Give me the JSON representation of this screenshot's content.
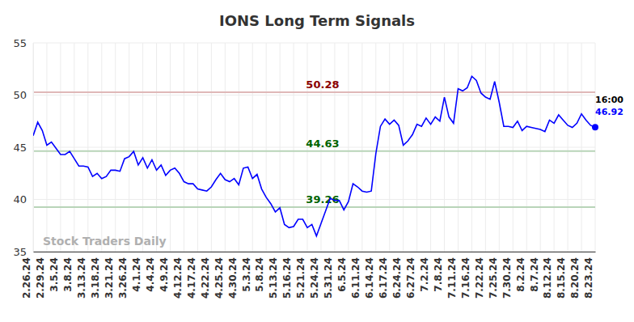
{
  "chart_data": {
    "type": "line",
    "title": "IONS Long Term Signals",
    "categories": [
      "2.26.24",
      null,
      null,
      "2.29.24",
      null,
      null,
      "3.5.24",
      null,
      null,
      "3.8.24",
      null,
      null,
      "3.13.24",
      null,
      null,
      "3.18.24",
      null,
      null,
      "3.21.24",
      null,
      null,
      "3.26.24",
      null,
      null,
      "4.1.24",
      null,
      null,
      "4.4.24",
      null,
      null,
      "4.9.24",
      null,
      null,
      "4.12.24",
      null,
      null,
      "4.17.24",
      null,
      null,
      "4.22.24",
      null,
      null,
      "4.25.24",
      null,
      null,
      "4.30.24",
      null,
      null,
      "5.3.24",
      null,
      null,
      "5.8.24",
      null,
      null,
      "5.13.24",
      null,
      null,
      "5.16.24",
      null,
      null,
      "5.21.24",
      null,
      null,
      "5.24.24",
      null,
      null,
      "5.31.24",
      null,
      null,
      "6.5.24",
      null,
      null,
      "6.11.24",
      null,
      null,
      "6.14.24",
      null,
      null,
      "6.17.24",
      null,
      null,
      "6.24.24",
      null,
      null,
      "6.27.24",
      null,
      null,
      "7.2.24",
      null,
      null,
      "7.8.24",
      null,
      null,
      "7.11.24",
      null,
      null,
      "7.16.24",
      null,
      null,
      "7.22.24",
      null,
      null,
      "7.25.24",
      null,
      null,
      "7.30.24",
      null,
      null,
      "8.2.24",
      null,
      null,
      "8.7.24",
      null,
      null,
      "8.12.24",
      null,
      null,
      "8.15.24",
      null,
      null,
      "8.20.24",
      null,
      null,
      "8.23.24"
    ],
    "values": [
      46.1,
      47.4,
      46.6,
      45.2,
      45.5,
      44.9,
      44.3,
      44.3,
      44.6,
      43.9,
      43.2,
      43.2,
      43.1,
      42.2,
      42.5,
      42.0,
      42.2,
      42.8,
      42.8,
      42.7,
      43.9,
      44.1,
      44.6,
      43.3,
      44.0,
      43.0,
      43.8,
      42.8,
      43.3,
      42.3,
      42.8,
      43.0,
      42.5,
      41.7,
      41.5,
      41.5,
      41.0,
      40.9,
      40.8,
      41.2,
      41.9,
      42.5,
      41.9,
      41.7,
      42.0,
      41.4,
      43.0,
      43.1,
      42.0,
      42.4,
      41.0,
      40.2,
      39.6,
      38.8,
      39.2,
      37.6,
      37.3,
      37.4,
      38.1,
      38.1,
      37.3,
      37.6,
      36.5,
      37.7,
      38.9,
      40.1,
      39.9,
      39.9,
      39.0,
      39.8,
      41.5,
      41.2,
      40.8,
      40.7,
      40.8,
      44.4,
      47.0,
      47.7,
      47.2,
      47.6,
      47.1,
      45.2,
      45.6,
      46.2,
      47.2,
      47.0,
      47.8,
      47.2,
      47.9,
      47.5,
      49.8,
      47.9,
      47.3,
      50.6,
      50.4,
      50.7,
      51.8,
      51.4,
      50.2,
      49.8,
      49.6,
      51.3,
      49.3,
      47.0,
      47.0,
      46.9,
      47.5,
      46.6,
      47.0,
      46.9,
      46.8,
      46.7,
      46.5,
      47.6,
      47.3,
      48.1,
      47.6,
      47.1,
      46.9,
      47.3,
      48.2,
      47.6,
      47.1,
      46.92
    ],
    "color": "#0000ff",
    "ylim": [
      35,
      55
    ],
    "yticks": [
      35,
      40,
      45,
      50,
      55
    ],
    "grid": true,
    "reference_lines": [
      {
        "value": 50.28,
        "color": "#8b0000"
      },
      {
        "value": 44.63,
        "color": "#006400"
      },
      {
        "value": 39.26,
        "color": "#006400"
      }
    ],
    "end_label": "16:00",
    "watermark": "Stock Traders Daily"
  }
}
